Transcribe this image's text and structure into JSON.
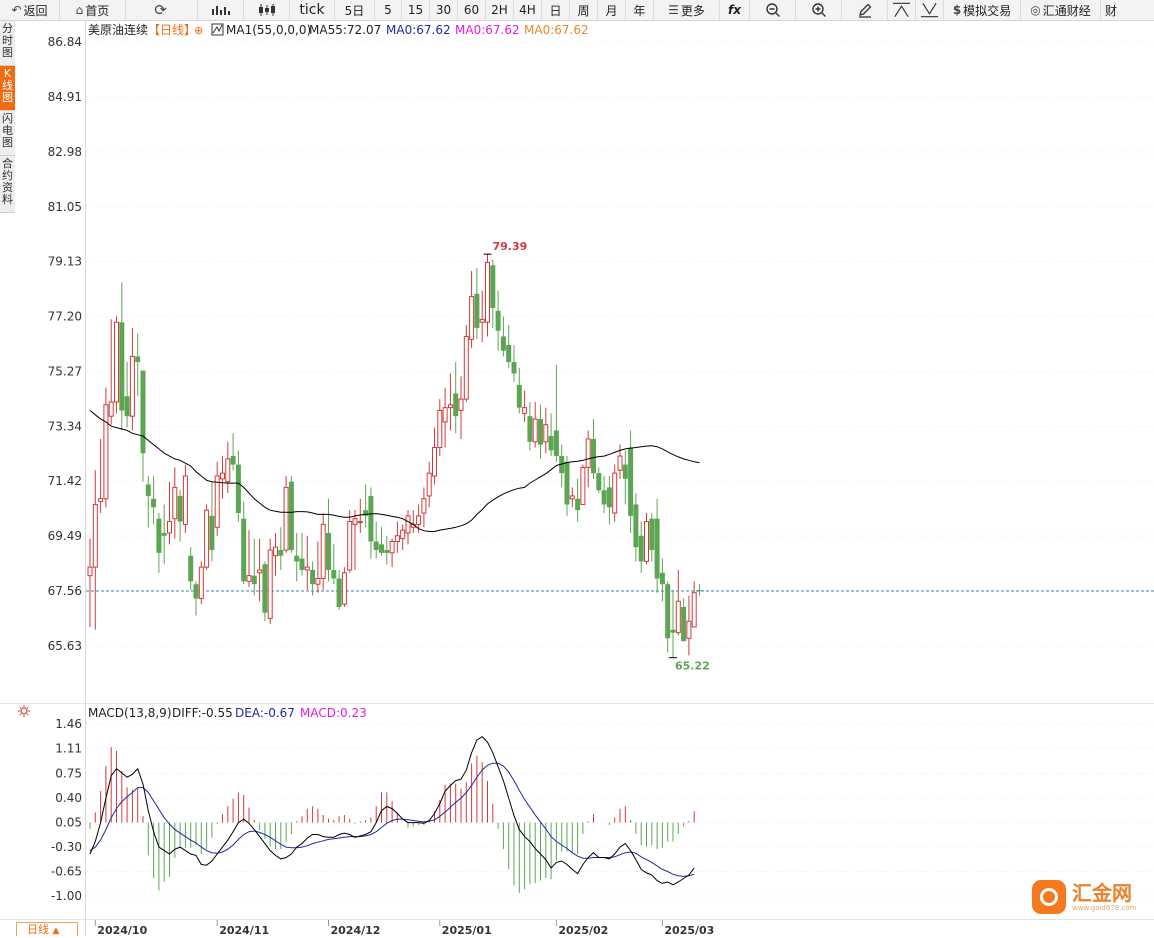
{
  "toolbar": {
    "back": "返回",
    "home": "首页",
    "tick": "tick",
    "five_day": "5日",
    "m5": "5",
    "m15": "15",
    "m30": "30",
    "m60": "60",
    "h2": "2H",
    "h4": "4H",
    "day": "日",
    "week": "周",
    "month": "月",
    "year": "年",
    "more": "更多",
    "fx": "fx",
    "sim_trade": "模拟交易",
    "fx678": "汇通财经",
    "cai": "财"
  },
  "sidebar": {
    "items": [
      {
        "label": "分时图"
      },
      {
        "label": "K线图",
        "active": true
      },
      {
        "label": "闪电图"
      },
      {
        "label": "合约资料"
      }
    ]
  },
  "legend": {
    "symbol": "美原油连续",
    "period": "【日线】",
    "ma1": "MA1(55,0,0,0)",
    "ma55": "MA55:72.07",
    "ma0_a": "MA0:67.62",
    "ma0_b": "MA0:67.62",
    "ma0_c": "MA0:67.62"
  },
  "macd_legend": {
    "name": "MACD(13,8,9)",
    "diff": "DIFF:-0.55",
    "dea": "DEA:-0.67",
    "macd": "MACD:0.23"
  },
  "period_tab": "日线",
  "logo": {
    "text": "汇金网",
    "url_text": "www.gold678.com"
  },
  "colors": {
    "up": "#d23a3a",
    "down": "#5ca653",
    "ma": "#000000",
    "diff": "#000000",
    "dea": "#1e2aa3",
    "macd_text": "#e31ce3",
    "current_line": "#3d7cb5",
    "accent": "#f26b11"
  },
  "chart_data": [
    {
      "type": "candlestick",
      "y_ticks": [
        "86.84",
        "84.91",
        "82.98",
        "81.05",
        "79.13",
        "77.20",
        "75.27",
        "73.34",
        "71.42",
        "69.49",
        "67.56",
        "65.63"
      ],
      "ylim": [
        65.63,
        86.84
      ],
      "x_tick_labels": [
        {
          "label": "2024/10",
          "index": 1
        },
        {
          "label": "2024/11",
          "index": 24
        },
        {
          "label": "2024/12",
          "index": 45
        },
        {
          "label": "2025/01",
          "index": 66
        },
        {
          "label": "2025/02",
          "index": 88
        },
        {
          "label": "2025/03",
          "index": 108
        }
      ],
      "max_label": {
        "value": "79.39",
        "index": 75
      },
      "min_label": {
        "value": "65.22",
        "index": 110
      },
      "current_price": 67.56,
      "candles": [
        {
          "o": 68.1,
          "h": 69.4,
          "l": 66.3,
          "c": 68.4
        },
        {
          "o": 68.4,
          "h": 71.8,
          "l": 66.2,
          "c": 70.6
        },
        {
          "o": 70.7,
          "h": 72.9,
          "l": 70.3,
          "c": 70.8
        },
        {
          "o": 70.8,
          "h": 74.7,
          "l": 70.5,
          "c": 74.1
        },
        {
          "o": 73.7,
          "h": 77.1,
          "l": 73.4,
          "c": 74.2
        },
        {
          "o": 74.2,
          "h": 77.2,
          "l": 73.8,
          "c": 77.0
        },
        {
          "o": 77.0,
          "h": 78.4,
          "l": 73.2,
          "c": 73.9
        },
        {
          "o": 74.4,
          "h": 75.6,
          "l": 73.3,
          "c": 73.7
        },
        {
          "o": 73.7,
          "h": 76.8,
          "l": 73.2,
          "c": 75.8
        },
        {
          "o": 75.8,
          "h": 76.6,
          "l": 74.4,
          "c": 75.6
        },
        {
          "o": 75.3,
          "h": 75.3,
          "l": 71.4,
          "c": 72.4
        },
        {
          "o": 71.3,
          "h": 71.6,
          "l": 69.8,
          "c": 70.9
        },
        {
          "o": 70.8,
          "h": 71.6,
          "l": 69.9,
          "c": 70.5
        },
        {
          "o": 70.1,
          "h": 70.3,
          "l": 68.2,
          "c": 68.9
        },
        {
          "o": 69.6,
          "h": 70.6,
          "l": 68.5,
          "c": 69.5
        },
        {
          "o": 69.6,
          "h": 71.4,
          "l": 69.2,
          "c": 70.0
        },
        {
          "o": 70.1,
          "h": 71.9,
          "l": 69.4,
          "c": 71.2
        },
        {
          "o": 70.9,
          "h": 71.1,
          "l": 69.3,
          "c": 70.0
        },
        {
          "o": 69.9,
          "h": 72.0,
          "l": 69.6,
          "c": 71.6
        },
        {
          "o": 68.8,
          "h": 69.1,
          "l": 67.6,
          "c": 67.9
        },
        {
          "o": 67.8,
          "h": 67.9,
          "l": 66.7,
          "c": 67.3
        },
        {
          "o": 67.3,
          "h": 68.6,
          "l": 67.1,
          "c": 68.4
        },
        {
          "o": 68.4,
          "h": 70.6,
          "l": 68.3,
          "c": 70.4
        },
        {
          "o": 70.2,
          "h": 71.4,
          "l": 68.6,
          "c": 69.0
        },
        {
          "o": 69.8,
          "h": 72.1,
          "l": 69.5,
          "c": 71.6
        },
        {
          "o": 71.5,
          "h": 72.3,
          "l": 70.8,
          "c": 71.7
        },
        {
          "o": 71.4,
          "h": 72.8,
          "l": 71.0,
          "c": 72.2
        },
        {
          "o": 72.3,
          "h": 73.1,
          "l": 71.8,
          "c": 72.0
        },
        {
          "o": 72.0,
          "h": 72.5,
          "l": 70.0,
          "c": 70.3
        },
        {
          "o": 70.1,
          "h": 70.7,
          "l": 67.8,
          "c": 67.9
        },
        {
          "o": 67.9,
          "h": 69.7,
          "l": 67.7,
          "c": 68.1
        },
        {
          "o": 68.1,
          "h": 69.4,
          "l": 67.4,
          "c": 67.8
        },
        {
          "o": 68.2,
          "h": 69.4,
          "l": 67.2,
          "c": 68.3
        },
        {
          "o": 68.5,
          "h": 68.6,
          "l": 66.5,
          "c": 66.8
        },
        {
          "o": 66.6,
          "h": 69.4,
          "l": 66.4,
          "c": 69.0
        },
        {
          "o": 68.8,
          "h": 69.6,
          "l": 68.1,
          "c": 69.1
        },
        {
          "o": 69.0,
          "h": 69.8,
          "l": 68.3,
          "c": 68.8
        },
        {
          "o": 69.0,
          "h": 71.6,
          "l": 68.9,
          "c": 71.2
        },
        {
          "o": 71.4,
          "h": 71.6,
          "l": 68.9,
          "c": 69.0
        },
        {
          "o": 68.8,
          "h": 69.6,
          "l": 67.9,
          "c": 68.6
        },
        {
          "o": 68.7,
          "h": 69.6,
          "l": 68.1,
          "c": 68.3
        },
        {
          "o": 68.3,
          "h": 69.5,
          "l": 67.6,
          "c": 68.4
        },
        {
          "o": 68.3,
          "h": 68.6,
          "l": 67.4,
          "c": 67.8
        },
        {
          "o": 67.8,
          "h": 69.3,
          "l": 67.5,
          "c": 68.0
        },
        {
          "o": 68.0,
          "h": 70.3,
          "l": 67.6,
          "c": 69.9
        },
        {
          "o": 69.6,
          "h": 70.8,
          "l": 67.9,
          "c": 68.3
        },
        {
          "o": 68.3,
          "h": 69.2,
          "l": 67.8,
          "c": 68.0
        },
        {
          "o": 68.0,
          "h": 68.3,
          "l": 66.9,
          "c": 67.0
        },
        {
          "o": 67.1,
          "h": 68.4,
          "l": 67.0,
          "c": 68.2
        },
        {
          "o": 68.3,
          "h": 70.4,
          "l": 68.2,
          "c": 70.0
        },
        {
          "o": 69.9,
          "h": 70.4,
          "l": 68.3,
          "c": 70.1
        },
        {
          "o": 70.0,
          "h": 70.8,
          "l": 69.6,
          "c": 70.0
        },
        {
          "o": 70.4,
          "h": 71.3,
          "l": 69.8,
          "c": 70.2
        },
        {
          "o": 70.9,
          "h": 71.2,
          "l": 68.7,
          "c": 69.3
        },
        {
          "o": 69.3,
          "h": 70.0,
          "l": 68.7,
          "c": 69.0
        },
        {
          "o": 69.2,
          "h": 69.8,
          "l": 68.8,
          "c": 68.9
        },
        {
          "o": 69.0,
          "h": 69.5,
          "l": 68.5,
          "c": 68.9
        },
        {
          "o": 68.9,
          "h": 69.4,
          "l": 68.4,
          "c": 69.3
        },
        {
          "o": 69.3,
          "h": 70.0,
          "l": 68.9,
          "c": 69.5
        },
        {
          "o": 69.4,
          "h": 69.9,
          "l": 69.0,
          "c": 69.7
        },
        {
          "o": 69.6,
          "h": 70.4,
          "l": 69.2,
          "c": 70.2
        },
        {
          "o": 69.8,
          "h": 70.4,
          "l": 69.6,
          "c": 69.9
        },
        {
          "o": 69.9,
          "h": 70.6,
          "l": 69.6,
          "c": 70.2
        },
        {
          "o": 70.3,
          "h": 71.2,
          "l": 69.8,
          "c": 70.8
        },
        {
          "o": 70.9,
          "h": 72.1,
          "l": 70.5,
          "c": 71.7
        },
        {
          "o": 71.6,
          "h": 73.3,
          "l": 71.3,
          "c": 72.6
        },
        {
          "o": 72.6,
          "h": 74.3,
          "l": 72.3,
          "c": 73.9
        },
        {
          "o": 73.5,
          "h": 74.7,
          "l": 72.6,
          "c": 74.0
        },
        {
          "o": 74.0,
          "h": 75.2,
          "l": 73.2,
          "c": 74.1
        },
        {
          "o": 74.5,
          "h": 75.6,
          "l": 73.1,
          "c": 73.7
        },
        {
          "o": 73.9,
          "h": 75.1,
          "l": 72.9,
          "c": 74.3
        },
        {
          "o": 74.3,
          "h": 76.9,
          "l": 74.2,
          "c": 76.5
        },
        {
          "o": 76.4,
          "h": 78.8,
          "l": 76.1,
          "c": 77.9
        },
        {
          "o": 78.0,
          "h": 78.9,
          "l": 76.4,
          "c": 76.8
        },
        {
          "o": 77.0,
          "h": 78.1,
          "l": 76.3,
          "c": 77.1
        },
        {
          "o": 77.0,
          "h": 79.4,
          "l": 76.5,
          "c": 79.1
        },
        {
          "o": 79.0,
          "h": 79.2,
          "l": 76.8,
          "c": 77.5
        },
        {
          "o": 77.4,
          "h": 78.1,
          "l": 76.0,
          "c": 76.7
        },
        {
          "o": 76.5,
          "h": 77.2,
          "l": 75.8,
          "c": 76.0
        },
        {
          "o": 76.2,
          "h": 76.9,
          "l": 75.4,
          "c": 75.6
        },
        {
          "o": 75.6,
          "h": 76.2,
          "l": 74.9,
          "c": 75.2
        },
        {
          "o": 74.8,
          "h": 75.4,
          "l": 73.8,
          "c": 74.0
        },
        {
          "o": 73.8,
          "h": 74.6,
          "l": 73.5,
          "c": 74.0
        },
        {
          "o": 73.7,
          "h": 74.2,
          "l": 72.5,
          "c": 72.8
        },
        {
          "o": 72.8,
          "h": 74.2,
          "l": 72.6,
          "c": 73.6
        },
        {
          "o": 73.6,
          "h": 74.1,
          "l": 72.2,
          "c": 72.7
        },
        {
          "o": 72.8,
          "h": 74.0,
          "l": 72.4,
          "c": 73.4
        },
        {
          "o": 73.0,
          "h": 73.8,
          "l": 72.3,
          "c": 72.5
        },
        {
          "o": 73.2,
          "h": 75.5,
          "l": 72.1,
          "c": 72.3
        },
        {
          "o": 72.3,
          "h": 72.7,
          "l": 71.2,
          "c": 71.7
        },
        {
          "o": 72.1,
          "h": 72.3,
          "l": 70.2,
          "c": 70.6
        },
        {
          "o": 70.8,
          "h": 71.2,
          "l": 70.5,
          "c": 70.9
        },
        {
          "o": 70.8,
          "h": 71.5,
          "l": 70.0,
          "c": 70.4
        },
        {
          "o": 70.6,
          "h": 72.0,
          "l": 70.6,
          "c": 71.9
        },
        {
          "o": 71.9,
          "h": 73.2,
          "l": 71.2,
          "c": 72.9
        },
        {
          "o": 72.9,
          "h": 73.6,
          "l": 71.5,
          "c": 71.7
        },
        {
          "o": 71.7,
          "h": 71.9,
          "l": 71.0,
          "c": 71.1
        },
        {
          "o": 71.1,
          "h": 71.6,
          "l": 70.3,
          "c": 70.6
        },
        {
          "o": 71.2,
          "h": 71.6,
          "l": 69.9,
          "c": 70.5
        },
        {
          "o": 70.3,
          "h": 72.0,
          "l": 70.0,
          "c": 71.7
        },
        {
          "o": 71.8,
          "h": 72.7,
          "l": 71.5,
          "c": 72.3
        },
        {
          "o": 72.0,
          "h": 72.5,
          "l": 70.6,
          "c": 71.5
        },
        {
          "o": 72.6,
          "h": 73.2,
          "l": 69.6,
          "c": 70.2
        },
        {
          "o": 70.6,
          "h": 71.0,
          "l": 68.6,
          "c": 69.1
        },
        {
          "o": 69.5,
          "h": 70.0,
          "l": 68.2,
          "c": 68.6
        },
        {
          "o": 68.6,
          "h": 70.3,
          "l": 68.5,
          "c": 70.0
        },
        {
          "o": 70.1,
          "h": 70.3,
          "l": 68.6,
          "c": 69.0
        },
        {
          "o": 70.1,
          "h": 70.8,
          "l": 67.5,
          "c": 68.0
        },
        {
          "o": 68.2,
          "h": 68.7,
          "l": 67.2,
          "c": 67.8
        },
        {
          "o": 67.8,
          "h": 67.9,
          "l": 65.4,
          "c": 65.9
        },
        {
          "o": 66.2,
          "h": 67.6,
          "l": 65.2,
          "c": 66.1
        },
        {
          "o": 66.1,
          "h": 68.3,
          "l": 66.0,
          "c": 67.2
        },
        {
          "o": 67.0,
          "h": 67.3,
          "l": 65.8,
          "c": 65.8
        },
        {
          "o": 65.9,
          "h": 67.4,
          "l": 65.3,
          "c": 66.5
        },
        {
          "o": 66.3,
          "h": 67.9,
          "l": 66.3,
          "c": 67.5
        },
        {
          "o": 67.6,
          "h": 67.8,
          "l": 67.4,
          "c": 67.56
        }
      ],
      "ma55": [
        73.9,
        73.75,
        73.6,
        73.5,
        73.35,
        73.3,
        73.25,
        73.2,
        73.1,
        73.05,
        73.0,
        72.85,
        72.7,
        72.55,
        72.4,
        72.3,
        72.2,
        72.15,
        72.05,
        71.95,
        71.75,
        71.6,
        71.45,
        71.4,
        71.38,
        71.36,
        71.35,
        71.35,
        71.35,
        71.2,
        71.0,
        70.8,
        70.65,
        70.5,
        70.4,
        70.36,
        70.33,
        70.33,
        70.32,
        70.35,
        70.35,
        70.34,
        70.3,
        70.25,
        70.25,
        70.25,
        70.22,
        70.18,
        70.15,
        70.15,
        70.2,
        70.23,
        70.26,
        70.27,
        70.28,
        70.25,
        70.22,
        70.18,
        70.15,
        70.1,
        70.0,
        69.9,
        69.75,
        69.68,
        69.65,
        69.65,
        69.7,
        69.73,
        69.76,
        69.8,
        69.85,
        69.92,
        70.05,
        70.25,
        70.42,
        70.62,
        70.75,
        70.87,
        70.97,
        71.05,
        71.12,
        71.17,
        71.2,
        71.35,
        71.46,
        71.57,
        71.68,
        71.82,
        71.97,
        72.02,
        72.07,
        72.1,
        72.12,
        72.15,
        72.2,
        72.25,
        72.28,
        72.3,
        72.36,
        72.43,
        72.5,
        72.55,
        72.58,
        72.6,
        72.63,
        72.65,
        72.66,
        72.63,
        72.55,
        72.45,
        72.35,
        72.27,
        72.2,
        72.15,
        72.1,
        72.07
      ]
    },
    {
      "type": "macd",
      "y_ticks": [
        "1.46",
        "1.11",
        "0.75",
        "0.40",
        "0.05",
        "-0.30",
        "-0.65",
        "-1.00"
      ],
      "ylim": [
        -1.0,
        1.46
      ],
      "diff": [
        -0.4,
        -0.22,
        0.05,
        0.4,
        0.72,
        0.82,
        0.76,
        0.7,
        0.74,
        0.82,
        0.6,
        0.22,
        -0.08,
        -0.3,
        -0.35,
        -0.4,
        -0.33,
        -0.3,
        -0.35,
        -0.4,
        -0.42,
        -0.55,
        -0.56,
        -0.5,
        -0.4,
        -0.3,
        -0.2,
        -0.08,
        0.05,
        0.1,
        0.04,
        -0.05,
        -0.15,
        -0.25,
        -0.35,
        -0.42,
        -0.47,
        -0.45,
        -0.4,
        -0.3,
        -0.25,
        -0.17,
        -0.12,
        -0.12,
        -0.15,
        -0.16,
        -0.16,
        -0.12,
        -0.1,
        -0.12,
        -0.16,
        -0.14,
        -0.12,
        -0.08,
        0.05,
        0.22,
        0.28,
        0.25,
        0.18,
        0.1,
        0.05,
        0.05,
        0.05,
        0.04,
        0.08,
        0.18,
        0.32,
        0.5,
        0.58,
        0.65,
        0.67,
        0.8,
        1.05,
        1.23,
        1.28,
        1.2,
        1.05,
        0.85,
        0.65,
        0.4,
        0.15,
        -0.05,
        -0.15,
        -0.22,
        -0.32,
        -0.4,
        -0.48,
        -0.6,
        -0.52,
        -0.5,
        -0.55,
        -0.62,
        -0.68,
        -0.55,
        -0.45,
        -0.38,
        -0.45,
        -0.45,
        -0.47,
        -0.4,
        -0.3,
        -0.25,
        -0.35,
        -0.48,
        -0.62,
        -0.67,
        -0.7,
        -0.78,
        -0.82,
        -0.8,
        -0.84,
        -0.8,
        -0.75,
        -0.7,
        -0.6
      ],
      "dea": [
        -0.35,
        -0.3,
        -0.2,
        -0.05,
        0.12,
        0.25,
        0.35,
        0.42,
        0.48,
        0.55,
        0.55,
        0.48,
        0.36,
        0.24,
        0.12,
        0.03,
        -0.05,
        -0.1,
        -0.15,
        -0.2,
        -0.24,
        -0.3,
        -0.35,
        -0.38,
        -0.39,
        -0.37,
        -0.33,
        -0.27,
        -0.19,
        -0.12,
        -0.08,
        -0.07,
        -0.09,
        -0.12,
        -0.16,
        -0.21,
        -0.26,
        -0.3,
        -0.31,
        -0.31,
        -0.3,
        -0.28,
        -0.25,
        -0.23,
        -0.21,
        -0.19,
        -0.18,
        -0.17,
        -0.16,
        -0.15,
        -0.15,
        -0.15,
        -0.14,
        -0.12,
        -0.08,
        -0.02,
        0.04,
        0.08,
        0.1,
        0.1,
        0.09,
        0.08,
        0.07,
        0.06,
        0.07,
        0.09,
        0.14,
        0.2,
        0.27,
        0.34,
        0.4,
        0.48,
        0.58,
        0.7,
        0.8,
        0.87,
        0.9,
        0.9,
        0.86,
        0.77,
        0.65,
        0.51,
        0.38,
        0.27,
        0.16,
        0.06,
        -0.04,
        -0.15,
        -0.22,
        -0.27,
        -0.32,
        -0.38,
        -0.43,
        -0.46,
        -0.46,
        -0.45,
        -0.45,
        -0.45,
        -0.45,
        -0.44,
        -0.41,
        -0.38,
        -0.37,
        -0.39,
        -0.44,
        -0.48,
        -0.52,
        -0.57,
        -0.62,
        -0.65,
        -0.69,
        -0.71,
        -0.72,
        -0.71,
        -0.69
      ]
    }
  ]
}
